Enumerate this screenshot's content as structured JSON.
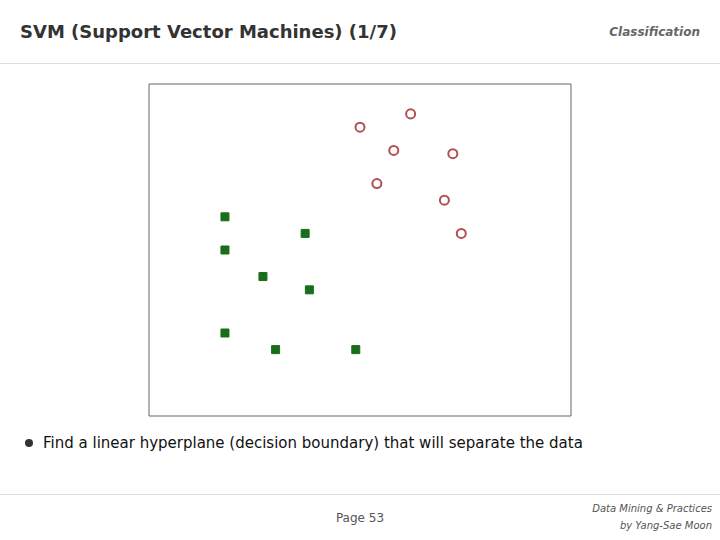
{
  "chart_data": {
    "type": "scatter",
    "title": "SVM (Support Vector Machines)  (1/7)",
    "subtitle": "Classification",
    "annotations": [
      "Find a linear hyperplane (decision boundary) that will separate the data",
      "Page 53",
      "Data Mining & Practices",
      "by Yang-Sae Moon"
    ],
    "series": [
      {
        "color": "#b05050",
        "marker": "hollow_circle",
        "x": [
          0.5,
          0.62,
          0.58,
          0.72,
          0.54,
          0.7,
          0.74
        ],
        "values": [
          0.87,
          0.91,
          0.8,
          0.79,
          0.7,
          0.65,
          0.55
        ]
      },
      {
        "color": "#1a6e1a",
        "marker": "square",
        "x": [
          0.18,
          0.37,
          0.18,
          0.27,
          0.38,
          0.18,
          0.3,
          0.49
        ],
        "values": [
          0.6,
          0.55,
          0.5,
          0.42,
          0.38,
          0.25,
          0.2,
          0.2
        ]
      }
    ],
    "xlim": [
      0,
      1
    ],
    "ylim": [
      0,
      1
    ],
    "grid": false,
    "tick_labels": false
  }
}
